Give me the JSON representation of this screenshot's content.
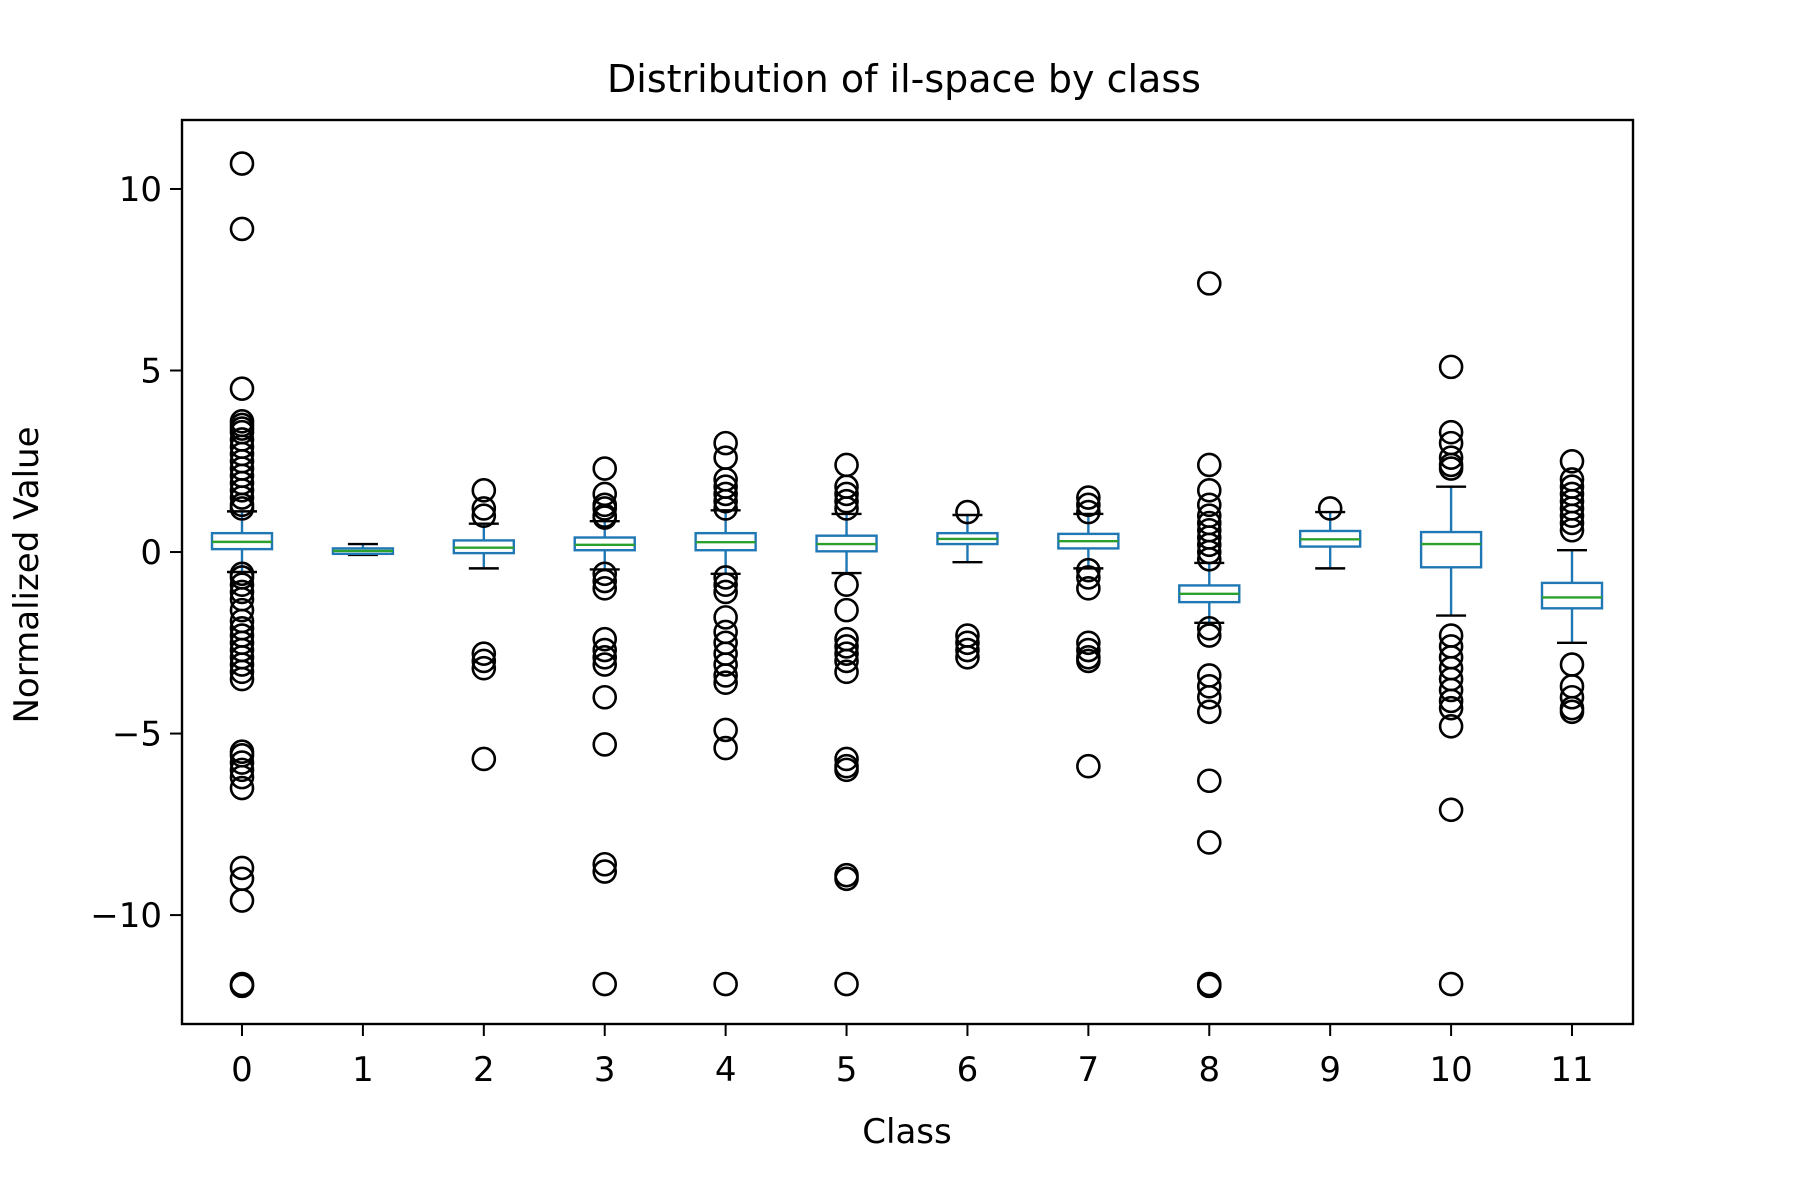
{
  "chart_data": {
    "type": "box",
    "title": "Distribution of il-space by class",
    "xlabel": "Class",
    "ylabel": "Normalized Value",
    "categories": [
      "0",
      "1",
      "2",
      "3",
      "4",
      "5",
      "6",
      "7",
      "8",
      "9",
      "10",
      "11"
    ],
    "ylim": [
      -13.0,
      11.9
    ],
    "yticks": [
      {
        "value": 10,
        "label": "10"
      },
      {
        "value": 5,
        "label": "5"
      },
      {
        "value": 0,
        "label": "0"
      },
      {
        "value": -5,
        "label": "−5"
      },
      {
        "value": -10,
        "label": "−10"
      }
    ],
    "grid": false,
    "colors": {
      "box": "#1f77b4",
      "median": "#2ca02c",
      "whisker_cap": "#000000",
      "outlier": "#000000",
      "frame": "#000000"
    },
    "boxes": [
      {
        "category": "0",
        "whisker_low": -0.55,
        "q1": 0.08,
        "median": 0.28,
        "q3": 0.52,
        "whisker_high": 1.12,
        "outliers": [
          10.7,
          8.9,
          4.5,
          3.6,
          3.5,
          3.4,
          3.3,
          3.1,
          2.9,
          2.7,
          2.5,
          2.3,
          2.1,
          1.9,
          1.7,
          1.5,
          1.3,
          1.2,
          -0.6,
          -0.7,
          -0.9,
          -1.1,
          -1.3,
          -1.6,
          -1.9,
          -2.1,
          -2.3,
          -2.5,
          -2.7,
          -2.9,
          -3.1,
          -3.3,
          -3.5,
          -5.5,
          -5.6,
          -5.8,
          -6.0,
          -6.2,
          -6.5,
          -8.7,
          -9.0,
          -9.6,
          -11.9,
          -11.95
        ]
      },
      {
        "category": "1",
        "whisker_low": -0.08,
        "q1": -0.05,
        "median": 0.03,
        "q3": 0.1,
        "whisker_high": 0.22,
        "outliers": []
      },
      {
        "category": "2",
        "whisker_low": -0.45,
        "q1": -0.03,
        "median": 0.12,
        "q3": 0.32,
        "whisker_high": 0.78,
        "outliers": [
          1.7,
          1.2,
          1.0,
          -2.8,
          -3.0,
          -3.2,
          -5.7
        ]
      },
      {
        "category": "3",
        "whisker_low": -0.48,
        "q1": 0.05,
        "median": 0.2,
        "q3": 0.4,
        "whisker_high": 0.85,
        "outliers": [
          2.3,
          1.6,
          1.3,
          1.2,
          1.0,
          0.95,
          -0.6,
          -0.8,
          -1.0,
          -2.4,
          -2.7,
          -2.9,
          -3.1,
          -4.0,
          -5.3,
          -8.6,
          -8.8,
          -11.9
        ]
      },
      {
        "category": "4",
        "whisker_low": -0.6,
        "q1": 0.05,
        "median": 0.27,
        "q3": 0.52,
        "whisker_high": 1.15,
        "outliers": [
          3.0,
          2.6,
          2.0,
          1.8,
          1.6,
          1.4,
          1.2,
          -0.7,
          -0.9,
          -1.1,
          -1.8,
          -2.2,
          -2.5,
          -2.8,
          -3.1,
          -3.4,
          -3.6,
          -4.9,
          -5.4,
          -11.9
        ]
      },
      {
        "category": "5",
        "whisker_low": -0.58,
        "q1": 0.02,
        "median": 0.22,
        "q3": 0.45,
        "whisker_high": 1.05,
        "outliers": [
          2.4,
          1.8,
          1.6,
          1.4,
          1.2,
          -0.9,
          -1.6,
          -2.4,
          -2.6,
          -2.8,
          -3.0,
          -3.3,
          -5.7,
          -5.9,
          -6.0,
          -8.9,
          -9.0,
          -11.9
        ]
      },
      {
        "category": "6",
        "whisker_low": -0.28,
        "q1": 0.22,
        "median": 0.36,
        "q3": 0.52,
        "whisker_high": 1.02,
        "outliers": [
          1.1,
          -2.3,
          -2.5,
          -2.7,
          -2.9
        ]
      },
      {
        "category": "7",
        "whisker_low": -0.45,
        "q1": 0.1,
        "median": 0.3,
        "q3": 0.5,
        "whisker_high": 1.05,
        "outliers": [
          1.5,
          1.3,
          1.1,
          -0.5,
          -0.7,
          -1.0,
          -2.5,
          -2.7,
          -2.9,
          -3.0,
          -5.9
        ]
      },
      {
        "category": "8",
        "whisker_low": -1.95,
        "q1": -1.38,
        "median": -1.15,
        "q3": -0.92,
        "whisker_high": -0.3,
        "outliers": [
          7.4,
          2.4,
          1.7,
          1.3,
          1.0,
          0.8,
          0.6,
          0.4,
          0.2,
          0.0,
          -0.2,
          -2.1,
          -2.3,
          -3.4,
          -3.7,
          -4.0,
          -4.4,
          -6.3,
          -8.0,
          -11.9,
          -11.95
        ]
      },
      {
        "category": "9",
        "whisker_low": -0.45,
        "q1": 0.15,
        "median": 0.35,
        "q3": 0.58,
        "whisker_high": 1.1,
        "outliers": [
          1.2
        ]
      },
      {
        "category": "10",
        "whisker_low": -1.75,
        "q1": -0.42,
        "median": 0.22,
        "q3": 0.55,
        "whisker_high": 1.8,
        "outliers": [
          5.1,
          3.3,
          3.0,
          2.6,
          2.4,
          2.3,
          -2.3,
          -2.6,
          -2.9,
          -3.2,
          -3.5,
          -3.8,
          -4.1,
          -4.3,
          -4.8,
          -7.1,
          -11.9
        ]
      },
      {
        "category": "11",
        "whisker_low": -2.5,
        "q1": -1.55,
        "median": -1.25,
        "q3": -0.85,
        "whisker_high": 0.05,
        "outliers": [
          2.5,
          2.0,
          1.8,
          1.6,
          1.4,
          1.2,
          1.0,
          0.8,
          0.6,
          -3.1,
          -3.7,
          -4.0,
          -4.3,
          -4.4
        ]
      }
    ]
  }
}
